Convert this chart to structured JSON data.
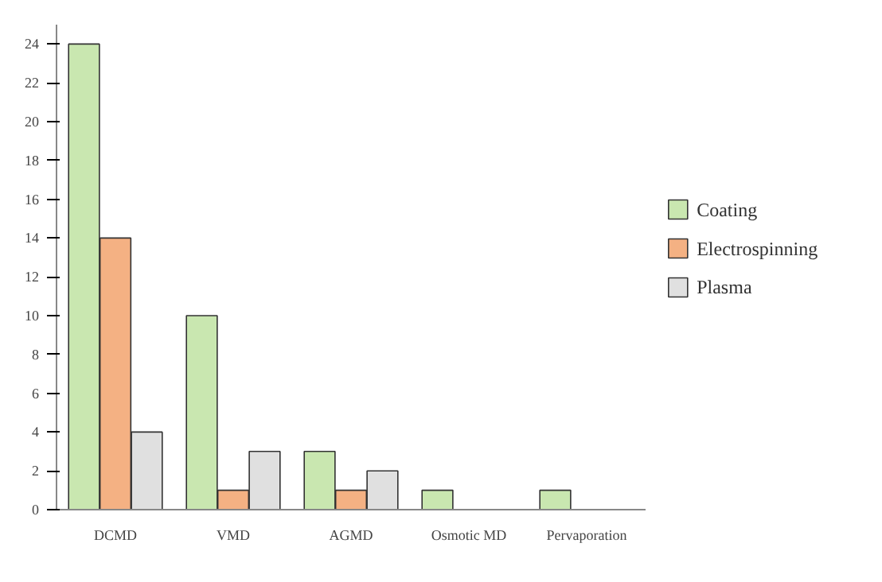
{
  "chart_data": {
    "type": "bar",
    "categories": [
      "DCMD",
      "VMD",
      "AGMD",
      "Osmotic MD",
      "Pervaporation"
    ],
    "series": [
      {
        "name": "Coating",
        "color": "#c9e7b0",
        "values": [
          24,
          10,
          3,
          1,
          1
        ]
      },
      {
        "name": "Electrospinning",
        "color": "#f4b183",
        "values": [
          14,
          1,
          1,
          null,
          null
        ]
      },
      {
        "name": "Plasma",
        "color": "#e0e0e0",
        "values": [
          4,
          3,
          2,
          null,
          null
        ]
      }
    ],
    "ylim": [
      0,
      25
    ],
    "yticks": [
      0,
      2,
      4,
      6,
      8,
      10,
      12,
      14,
      16,
      18,
      20,
      22,
      24
    ],
    "legend": "right"
  }
}
